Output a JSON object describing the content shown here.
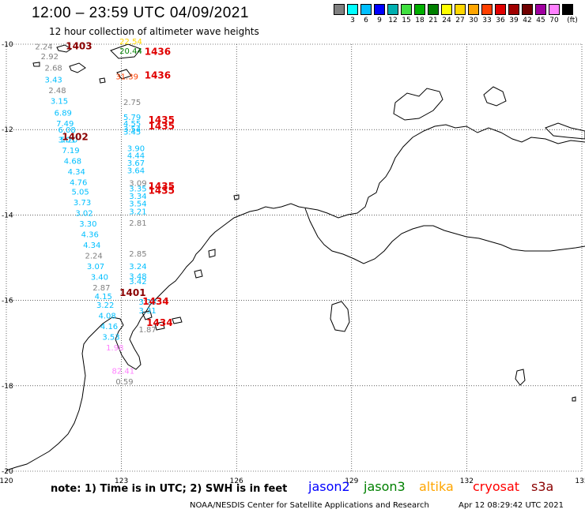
{
  "header": {
    "title": "12:00 – 23:59 UTC 04/09/2021",
    "subtitle": "12 hour collection of altimeter wave heights"
  },
  "legend": {
    "unit": "(ft)",
    "steps": [
      {
        "label": "",
        "color": "#808080"
      },
      {
        "label": "3",
        "color": "#00ffff"
      },
      {
        "label": "6",
        "color": "#00bfff"
      },
      {
        "label": "9",
        "color": "#0000ff"
      },
      {
        "label": "12",
        "color": "#00b0b0"
      },
      {
        "label": "15",
        "color": "#40e040"
      },
      {
        "label": "18",
        "color": "#00b000"
      },
      {
        "label": "21",
        "color": "#008000"
      },
      {
        "label": "24",
        "color": "#ffff00"
      },
      {
        "label": "27",
        "color": "#ffd700"
      },
      {
        "label": "30",
        "color": "#ffa500"
      },
      {
        "label": "33",
        "color": "#ff4000"
      },
      {
        "label": "36",
        "color": "#e00000"
      },
      {
        "label": "39",
        "color": "#a00000"
      },
      {
        "label": "42",
        "color": "#700000"
      },
      {
        "label": "45",
        "color": "#a000a0"
      },
      {
        "label": "70",
        "color": "#ff80ff"
      },
      {
        "label": "",
        "color": "#000000"
      }
    ]
  },
  "map": {
    "lon_ticks": [
      "120",
      "123",
      "126",
      "129",
      "132",
      "135"
    ],
    "lat_ticks": [
      "-10",
      "-12",
      "-14",
      "-16",
      "-18",
      "-20"
    ],
    "lon_range": [
      120,
      135
    ],
    "lat_range": [
      -20,
      -10
    ],
    "grid": "dotted"
  },
  "pass_labels": [
    {
      "text": "1403",
      "color": "#8b0000",
      "lon": 121.55,
      "lat": -10.12
    },
    {
      "text": "1436",
      "color": "#e00000",
      "lon": 123.6,
      "lat": -10.25
    },
    {
      "text": "1436",
      "color": "#e00000",
      "lon": 123.6,
      "lat": -10.8
    },
    {
      "text": "1435",
      "color": "#e00000",
      "lon": 123.7,
      "lat": -11.85
    },
    {
      "text": "1435",
      "color": "#e00000",
      "lon": 123.7,
      "lat": -12.0
    },
    {
      "text": "1402",
      "color": "#8b0000",
      "lon": 121.45,
      "lat": -12.25
    },
    {
      "text": "1435",
      "color": "#e00000",
      "lon": 123.7,
      "lat": -13.4
    },
    {
      "text": "1435",
      "color": "#e00000",
      "lon": 123.7,
      "lat": -13.5
    },
    {
      "text": "1401",
      "color": "#8b0000",
      "lon": 122.95,
      "lat": -15.9
    },
    {
      "text": "1434",
      "color": "#e00000",
      "lon": 123.55,
      "lat": -16.1
    },
    {
      "text": "1434",
      "color": "#e00000",
      "lon": 123.65,
      "lat": -16.6
    }
  ],
  "wave_heights": [
    {
      "text": "2.24",
      "color": "#808080",
      "lon": 120.75,
      "lat": -10.12
    },
    {
      "text": "2.92",
      "color": "#808080",
      "lon": 120.9,
      "lat": -10.35
    },
    {
      "text": "2.68",
      "color": "#808080",
      "lon": 121.0,
      "lat": -10.62
    },
    {
      "text": "3.43",
      "color": "#00bfff",
      "lon": 121.0,
      "lat": -10.9
    },
    {
      "text": "2.48",
      "color": "#808080",
      "lon": 121.1,
      "lat": -11.15
    },
    {
      "text": "3.15",
      "color": "#00bfff",
      "lon": 121.15,
      "lat": -11.4
    },
    {
      "text": "6.89",
      "color": "#00bfff",
      "lon": 121.25,
      "lat": -11.67
    },
    {
      "text": "7.49",
      "color": "#00bfff",
      "lon": 121.3,
      "lat": -11.92
    },
    {
      "text": "6.08",
      "color": "#00bfff",
      "lon": 121.35,
      "lat": -12.07
    },
    {
      "text": "5.20",
      "color": "#00bfff",
      "lon": 121.4,
      "lat": -12.3
    },
    {
      "text": "3.01",
      "color": "#00bfff",
      "lon": 121.35,
      "lat": -12.3
    },
    {
      "text": "7.19",
      "color": "#00bfff",
      "lon": 121.45,
      "lat": -12.55
    },
    {
      "text": "4.68",
      "color": "#00bfff",
      "lon": 121.5,
      "lat": -12.8
    },
    {
      "text": "4.34",
      "color": "#00bfff",
      "lon": 121.6,
      "lat": -13.05
    },
    {
      "text": "4.76",
      "color": "#00bfff",
      "lon": 121.65,
      "lat": -13.3
    },
    {
      "text": "5.05",
      "color": "#00bfff",
      "lon": 121.7,
      "lat": -13.52
    },
    {
      "text": "3.73",
      "color": "#00bfff",
      "lon": 121.75,
      "lat": -13.77
    },
    {
      "text": "3.02",
      "color": "#00bfff",
      "lon": 121.8,
      "lat": -14.02
    },
    {
      "text": "3.30",
      "color": "#00bfff",
      "lon": 121.9,
      "lat": -14.27
    },
    {
      "text": "4.36",
      "color": "#00bfff",
      "lon": 121.95,
      "lat": -14.52
    },
    {
      "text": "4.34",
      "color": "#00bfff",
      "lon": 122.0,
      "lat": -14.77
    },
    {
      "text": "2.24",
      "color": "#808080",
      "lon": 122.05,
      "lat": -15.02
    },
    {
      "text": "3.07",
      "color": "#00bfff",
      "lon": 122.1,
      "lat": -15.27
    },
    {
      "text": "3.40",
      "color": "#00bfff",
      "lon": 122.2,
      "lat": -15.52
    },
    {
      "text": "2.87",
      "color": "#808080",
      "lon": 122.25,
      "lat": -15.77
    },
    {
      "text": "4.15",
      "color": "#00bfff",
      "lon": 122.3,
      "lat": -15.97
    },
    {
      "text": "3.22",
      "color": "#00bfff",
      "lon": 122.35,
      "lat": -16.17
    },
    {
      "text": "4.08",
      "color": "#00bfff",
      "lon": 122.4,
      "lat": -16.42
    },
    {
      "text": "4.16",
      "color": "#00bfff",
      "lon": 122.45,
      "lat": -16.67
    },
    {
      "text": "3.53",
      "color": "#00bfff",
      "lon": 122.5,
      "lat": -16.92
    },
    {
      "text": "1.98",
      "color": "#ff80ff",
      "lon": 122.6,
      "lat": -17.17
    },
    {
      "text": "82.41",
      "color": "#ff80ff",
      "lon": 122.75,
      "lat": -17.72
    },
    {
      "text": "0.59",
      "color": "#808080",
      "lon": 122.85,
      "lat": -17.97
    },
    {
      "text": "22.54",
      "color": "#ffd700",
      "lon": 122.95,
      "lat": -10.0
    },
    {
      "text": "20.44",
      "color": "#008000",
      "lon": 122.95,
      "lat": -10.22
    },
    {
      "text": "31.39",
      "color": "#ff4000",
      "lon": 122.85,
      "lat": -10.82
    },
    {
      "text": "2.75",
      "color": "#808080",
      "lon": 123.05,
      "lat": -11.42
    },
    {
      "text": "5.79",
      "color": "#00bfff",
      "lon": 123.05,
      "lat": -11.77
    },
    {
      "text": "4.55",
      "color": "#00bfff",
      "lon": 123.05,
      "lat": -11.92
    },
    {
      "text": "3.54",
      "color": "#00bfff",
      "lon": 123.05,
      "lat": -12.05
    },
    {
      "text": "3.45",
      "color": "#00bfff",
      "lon": 123.05,
      "lat": -12.12
    },
    {
      "text": "3.90",
      "color": "#00bfff",
      "lon": 123.15,
      "lat": -12.5
    },
    {
      "text": "4.44",
      "color": "#00bfff",
      "lon": 123.15,
      "lat": -12.67
    },
    {
      "text": "3.67",
      "color": "#00bfff",
      "lon": 123.15,
      "lat": -12.85
    },
    {
      "text": "3.64",
      "color": "#00bfff",
      "lon": 123.15,
      "lat": -13.02
    },
    {
      "text": "3.09",
      "color": "#808080",
      "lon": 123.2,
      "lat": -13.32
    },
    {
      "text": "3.35",
      "color": "#00bfff",
      "lon": 123.2,
      "lat": -13.45
    },
    {
      "text": "3.34",
      "color": "#00bfff",
      "lon": 123.2,
      "lat": -13.62
    },
    {
      "text": "3.54",
      "color": "#00bfff",
      "lon": 123.2,
      "lat": -13.8
    },
    {
      "text": "3.21",
      "color": "#00bfff",
      "lon": 123.2,
      "lat": -13.98
    },
    {
      "text": "2.81",
      "color": "#808080",
      "lon": 123.2,
      "lat": -14.25
    },
    {
      "text": "2.85",
      "color": "#808080",
      "lon": 123.2,
      "lat": -14.97
    },
    {
      "text": "3.24",
      "color": "#00bfff",
      "lon": 123.2,
      "lat": -15.27
    },
    {
      "text": "3.48",
      "color": "#00bfff",
      "lon": 123.2,
      "lat": -15.5
    },
    {
      "text": "3.42",
      "color": "#00bfff",
      "lon": 123.2,
      "lat": -15.62
    },
    {
      "text": "3.28",
      "color": "#00bfff",
      "lon": 123.45,
      "lat": -16.1
    },
    {
      "text": "3.31",
      "color": "#00bfff",
      "lon": 123.45,
      "lat": -16.3
    },
    {
      "text": "1.87",
      "color": "#808080",
      "lon": 123.45,
      "lat": -16.75
    }
  ],
  "footer": {
    "note": "note:  1) Time is in UTC;  2) SWH is in feet",
    "missions": [
      {
        "text": "jason2",
        "color": "#0000ff"
      },
      {
        "text": "jason3",
        "color": "#008000"
      },
      {
        "text": "altika",
        "color": "#ffa500"
      },
      {
        "text": "cryosat",
        "color": "#ff0000"
      },
      {
        "text": "s3a",
        "color": "#8b0000"
      }
    ],
    "credit": "NOAA/NESDIS Center for Satellite Applications and Research",
    "timestamp": "Apr 12 08:29:42 UTC 2021"
  }
}
